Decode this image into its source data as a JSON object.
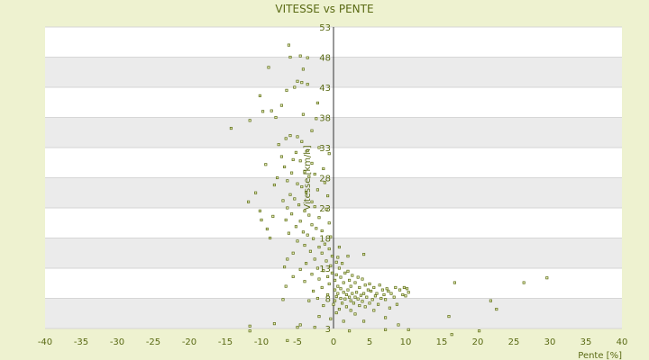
{
  "chart_data": {
    "type": "scatter",
    "title": "VITESSE vs PENTE",
    "xlabel": "Pente [%]",
    "ylabel": "Vitesse [km/h]",
    "xlim": [
      -40,
      40
    ],
    "ylim": [
      3,
      53
    ],
    "x_ticks": [
      "-40",
      "-35",
      "-30",
      "-25",
      "-20",
      "-15",
      "-10",
      "-5",
      "0",
      "5",
      "10",
      "15",
      "20",
      "25",
      "30",
      "35",
      "40"
    ],
    "y_ticks": [
      "3",
      "8",
      "13",
      "18",
      "23",
      "28",
      "33",
      "38",
      "43",
      "48",
      "53"
    ],
    "colors": {
      "marker": "#5a6a14",
      "band": "#ebebeb",
      "background": "#eef2d0"
    },
    "points": [
      [
        -6.2,
        50.0
      ],
      [
        -6.0,
        48.0
      ],
      [
        -4.6,
        48.2
      ],
      [
        -3.6,
        47.9
      ],
      [
        -9.0,
        46.3
      ],
      [
        -4.2,
        46.0
      ],
      [
        -5.0,
        44.0
      ],
      [
        -4.4,
        43.8
      ],
      [
        -3.6,
        43.5
      ],
      [
        -5.4,
        43.0
      ],
      [
        -6.5,
        42.5
      ],
      [
        -10.2,
        41.6
      ],
      [
        -2.2,
        40.4
      ],
      [
        -7.2,
        40.0
      ],
      [
        -9.8,
        39.0
      ],
      [
        -8.6,
        39.1
      ],
      [
        -4.2,
        38.5
      ],
      [
        -8.0,
        38.0
      ],
      [
        -11.6,
        37.5
      ],
      [
        -2.4,
        37.8
      ],
      [
        -14.2,
        36.2
      ],
      [
        -3.0,
        35.8
      ],
      [
        -6.0,
        35.0
      ],
      [
        -5.0,
        34.8
      ],
      [
        -6.6,
        34.5
      ],
      [
        -4.4,
        34.0
      ],
      [
        -7.6,
        33.5
      ],
      [
        -2.0,
        33.0
      ],
      [
        -5.2,
        32.2
      ],
      [
        -3.6,
        32.5
      ],
      [
        -0.6,
        32.0
      ],
      [
        -7.2,
        31.5
      ],
      [
        -5.6,
        31.0
      ],
      [
        -4.6,
        30.8
      ],
      [
        -3.0,
        30.4
      ],
      [
        -9.4,
        30.2
      ],
      [
        -6.8,
        29.8
      ],
      [
        -1.4,
        29.5
      ],
      [
        -4.0,
        29.0
      ],
      [
        -5.8,
        28.8
      ],
      [
        -2.6,
        28.6
      ],
      [
        -7.8,
        28.0
      ],
      [
        -3.4,
        28.2
      ],
      [
        -6.4,
        27.5
      ],
      [
        -5.0,
        27.0
      ],
      [
        -1.2,
        27.2
      ],
      [
        -8.2,
        26.8
      ],
      [
        -4.4,
        26.5
      ],
      [
        -2.2,
        26.0
      ],
      [
        -3.8,
        25.6
      ],
      [
        -6.0,
        25.2
      ],
      [
        -10.8,
        25.5
      ],
      [
        -0.8,
        25.0
      ],
      [
        -5.4,
        24.5
      ],
      [
        -7.0,
        24.2
      ],
      [
        -3.0,
        24.0
      ],
      [
        -4.8,
        23.5
      ],
      [
        -11.8,
        24.0
      ],
      [
        -6.4,
        23.0
      ],
      [
        -2.6,
        23.2
      ],
      [
        -1.0,
        22.8
      ],
      [
        -4.0,
        22.5
      ],
      [
        -5.8,
        22.0
      ],
      [
        -10.2,
        22.5
      ],
      [
        -3.4,
        21.8
      ],
      [
        -8.4,
        21.6
      ],
      [
        -2.0,
        21.4
      ],
      [
        -6.6,
        21.0
      ],
      [
        -4.6,
        20.8
      ],
      [
        -10.0,
        21.0
      ],
      [
        -0.6,
        20.5
      ],
      [
        -3.0,
        20.2
      ],
      [
        -5.2,
        19.9
      ],
      [
        -9.2,
        19.5
      ],
      [
        -2.4,
        19.6
      ],
      [
        -4.2,
        19.0
      ],
      [
        -1.6,
        19.2
      ],
      [
        -6.2,
        18.8
      ],
      [
        -3.6,
        18.5
      ],
      [
        -8.8,
        18.0
      ],
      [
        -0.4,
        18.2
      ],
      [
        -2.8,
        17.9
      ],
      [
        -5.0,
        17.5
      ],
      [
        -1.2,
        17.0
      ],
      [
        -4.0,
        16.8
      ],
      [
        -2.0,
        16.5
      ],
      [
        -0.6,
        16.2
      ],
      [
        -3.2,
        15.8
      ],
      [
        -1.6,
        15.5
      ],
      [
        -5.6,
        15.5
      ],
      [
        -0.2,
        15.0
      ],
      [
        0.6,
        14.8
      ],
      [
        -2.6,
        14.5
      ],
      [
        -6.4,
        14.5
      ],
      [
        -1.0,
        14.2
      ],
      [
        0.4,
        14.0
      ],
      [
        -3.8,
        13.8
      ],
      [
        1.2,
        13.8
      ],
      [
        -0.4,
        13.4
      ],
      [
        -6.8,
        13.2
      ],
      [
        -2.2,
        13.0
      ],
      [
        0.8,
        13.0
      ],
      [
        -4.6,
        12.8
      ],
      [
        -1.4,
        12.6
      ],
      [
        2.0,
        12.5
      ],
      [
        -0.2,
        12.2
      ],
      [
        1.6,
        12.2
      ],
      [
        -3.0,
        12.0
      ],
      [
        0.4,
        11.9
      ],
      [
        2.6,
        11.8
      ],
      [
        -5.6,
        11.6
      ],
      [
        -0.8,
        11.6
      ],
      [
        1.0,
        11.5
      ],
      [
        3.4,
        11.5
      ],
      [
        -2.0,
        11.2
      ],
      [
        0.2,
        11.0
      ],
      [
        2.2,
        11.0
      ],
      [
        4.0,
        11.2
      ],
      [
        -4.0,
        10.8
      ],
      [
        1.4,
        10.6
      ],
      [
        3.0,
        10.6
      ],
      [
        5.0,
        10.4
      ],
      [
        -0.6,
        10.4
      ],
      [
        -6.6,
        10.0
      ],
      [
        0.6,
        10.0
      ],
      [
        2.4,
        10.0
      ],
      [
        4.4,
        10.2
      ],
      [
        6.4,
        10.2
      ],
      [
        -1.6,
        9.8
      ],
      [
        1.0,
        9.6
      ],
      [
        3.6,
        9.8
      ],
      [
        5.6,
        9.8
      ],
      [
        7.4,
        9.6
      ],
      [
        8.6,
        9.8
      ],
      [
        9.8,
        9.8
      ],
      [
        0.2,
        9.4
      ],
      [
        2.0,
        9.4
      ],
      [
        4.8,
        9.4
      ],
      [
        6.8,
        9.4
      ],
      [
        10.2,
        9.6
      ],
      [
        -2.8,
        9.2
      ],
      [
        1.4,
        9.0
      ],
      [
        3.2,
        9.0
      ],
      [
        5.2,
        9.2
      ],
      [
        7.6,
        9.2
      ],
      [
        9.2,
        9.4
      ],
      [
        0.6,
        8.8
      ],
      [
        2.6,
        8.8
      ],
      [
        4.2,
        8.8
      ],
      [
        6.0,
        8.8
      ],
      [
        8.0,
        8.8
      ],
      [
        10.4,
        9.0
      ],
      [
        -0.8,
        8.6
      ],
      [
        1.8,
        8.6
      ],
      [
        3.8,
        8.5
      ],
      [
        5.8,
        8.4
      ],
      [
        7.0,
        8.6
      ],
      [
        9.6,
        8.6
      ],
      [
        0.4,
        8.3
      ],
      [
        2.2,
        8.2
      ],
      [
        3.0,
        8.2
      ],
      [
        4.6,
        8.2
      ],
      [
        6.6,
        8.0
      ],
      [
        8.4,
        8.2
      ],
      [
        10.0,
        8.4
      ],
      [
        -2.2,
        8.0
      ],
      [
        1.0,
        8.0
      ],
      [
        1.6,
        7.9
      ],
      [
        3.4,
        7.9
      ],
      [
        5.4,
        7.8
      ],
      [
        7.2,
        7.8
      ],
      [
        0.2,
        7.6
      ],
      [
        2.4,
        7.6
      ],
      [
        4.0,
        7.5
      ],
      [
        -7.0,
        7.8
      ],
      [
        -3.4,
        7.6
      ],
      [
        1.2,
        7.2
      ],
      [
        2.8,
        7.2
      ],
      [
        5.0,
        7.2
      ],
      [
        6.2,
        7.0
      ],
      [
        8.8,
        7.0
      ],
      [
        0.0,
        7.0
      ],
      [
        3.6,
        6.8
      ],
      [
        -1.4,
        6.8
      ],
      [
        1.8,
        6.6
      ],
      [
        4.4,
        6.6
      ],
      [
        7.8,
        6.4
      ],
      [
        0.8,
        6.2
      ],
      [
        2.4,
        6.0
      ],
      [
        5.6,
        6.0
      ],
      [
        0.4,
        5.6
      ],
      [
        3.0,
        5.4
      ],
      [
        7.2,
        4.8
      ],
      [
        -2.0,
        5.0
      ],
      [
        -0.4,
        4.6
      ],
      [
        1.4,
        4.2
      ],
      [
        4.2,
        4.2
      ],
      [
        9.0,
        3.6
      ],
      [
        -8.2,
        3.8
      ],
      [
        -4.6,
        3.6
      ],
      [
        -2.6,
        3.2
      ],
      [
        -5.0,
        3.2
      ],
      [
        10.4,
        2.8
      ],
      [
        7.2,
        2.8
      ],
      [
        -11.6,
        3.4
      ],
      [
        -11.6,
        2.6
      ],
      [
        2.2,
        2.6
      ],
      [
        -6.4,
        1.0
      ],
      [
        16.4,
        2.0
      ],
      [
        20.2,
        2.6
      ],
      [
        16.0,
        5.0
      ],
      [
        16.8,
        10.6
      ],
      [
        21.8,
        7.6
      ],
      [
        22.6,
        6.2
      ],
      [
        26.4,
        10.6
      ],
      [
        29.6,
        11.4
      ],
      [
        4.2,
        15.3
      ],
      [
        0.8,
        16.5
      ],
      [
        2.0,
        15.0
      ]
    ]
  }
}
